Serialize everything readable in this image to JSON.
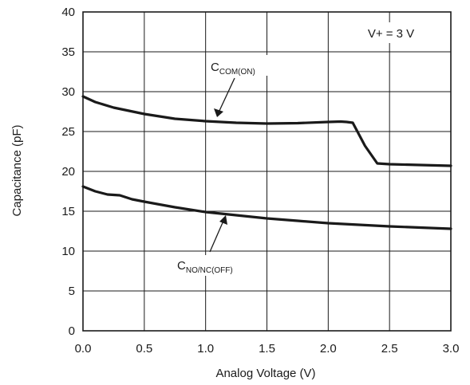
{
  "chart_data": {
    "type": "line",
    "xlabel": "Analog Voltage (V)",
    "ylabel": "Capacitance (pF)",
    "xlim": [
      0.0,
      3.0
    ],
    "ylim": [
      0,
      40
    ],
    "x_ticks": [
      "0.0",
      "0.5",
      "1.0",
      "1.5",
      "2.0",
      "2.5",
      "3.0"
    ],
    "y_ticks": [
      "0",
      "5",
      "10",
      "15",
      "20",
      "25",
      "30",
      "35",
      "40"
    ],
    "grid": true,
    "annotation": "V+ = 3 V",
    "series": [
      {
        "name": "C_COM(ON)",
        "label_main": "C",
        "label_sub": "COM(ON)",
        "x": [
          0.0,
          0.1,
          0.25,
          0.5,
          0.75,
          1.0,
          1.25,
          1.5,
          1.75,
          2.0,
          2.1,
          2.15,
          2.2,
          2.3,
          2.4,
          2.5,
          2.75,
          3.0
        ],
        "y": [
          29.4,
          28.7,
          28.0,
          27.2,
          26.6,
          26.3,
          26.1,
          26.0,
          26.05,
          26.2,
          26.25,
          26.2,
          26.1,
          23.2,
          21.0,
          20.9,
          20.8,
          20.7
        ]
      },
      {
        "name": "C_NO/NC(OFF)",
        "label_main": "C",
        "label_sub": "NO/NC(OFF)",
        "x": [
          0.0,
          0.1,
          0.2,
          0.3,
          0.4,
          0.5,
          0.75,
          1.0,
          1.25,
          1.5,
          1.75,
          2.0,
          2.25,
          2.5,
          2.75,
          3.0
        ],
        "y": [
          18.1,
          17.5,
          17.1,
          17.0,
          16.5,
          16.2,
          15.5,
          14.9,
          14.5,
          14.1,
          13.8,
          13.5,
          13.3,
          13.1,
          12.95,
          12.8
        ]
      }
    ]
  }
}
